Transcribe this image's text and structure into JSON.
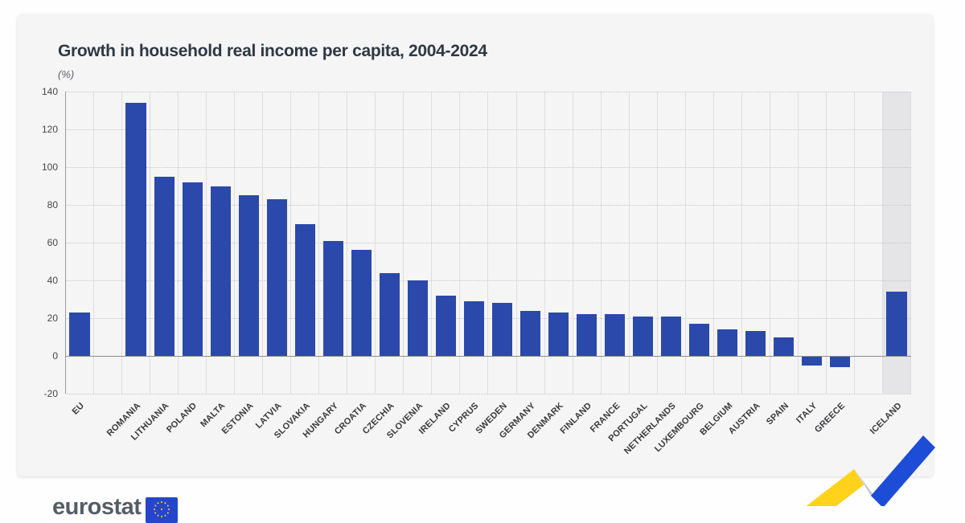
{
  "chart_data": {
    "type": "bar",
    "title": "Growth in household real income per capita, 2004-2024",
    "unit_label": "(%)",
    "xlabel": "",
    "ylabel": "(%)",
    "ylim": [
      -20,
      140
    ],
    "ytick_interval": 20,
    "yticks": [
      140,
      120,
      100,
      80,
      60,
      40,
      20,
      0,
      -20
    ],
    "grid": "horizontal dotted lines, vertical solid category separators",
    "legend": "none",
    "highlight_note": "ICELAND column has shaded gray background and is separated from EU members by an empty slot; EU aggregate bar is first, also separated by an empty slot",
    "bars": [
      {
        "label": "EU",
        "value": 23
      },
      {
        "label": "",
        "value": null,
        "spacer": true
      },
      {
        "label": "ROMANIA",
        "value": 134
      },
      {
        "label": "LITHUANIA",
        "value": 95
      },
      {
        "label": "POLAND",
        "value": 92
      },
      {
        "label": "MALTA",
        "value": 90
      },
      {
        "label": "ESTONIA",
        "value": 85
      },
      {
        "label": "LATVIA",
        "value": 83
      },
      {
        "label": "SLOVAKIA",
        "value": 70
      },
      {
        "label": "HUNGARY",
        "value": 61
      },
      {
        "label": "CROATIA",
        "value": 56
      },
      {
        "label": "CZECHIA",
        "value": 44
      },
      {
        "label": "SLOVENIA",
        "value": 40
      },
      {
        "label": "IRELAND",
        "value": 32
      },
      {
        "label": "CYPRUS",
        "value": 29
      },
      {
        "label": "SWEDEN",
        "value": 28
      },
      {
        "label": "GERMANY",
        "value": 24
      },
      {
        "label": "DENMARK",
        "value": 23
      },
      {
        "label": "FINLAND",
        "value": 22
      },
      {
        "label": "FRANCE",
        "value": 22
      },
      {
        "label": "PORTUGAL",
        "value": 21
      },
      {
        "label": "NETHERLANDS",
        "value": 21
      },
      {
        "label": "LUXEMBOURG",
        "value": 17
      },
      {
        "label": "BELGIUM",
        "value": 14
      },
      {
        "label": "AUSTRIA",
        "value": 13
      },
      {
        "label": "SPAIN",
        "value": 10
      },
      {
        "label": "ITALY",
        "value": -5
      },
      {
        "label": "GREECE",
        "value": -6
      },
      {
        "label": "",
        "value": null,
        "spacer": true
      },
      {
        "label": "ICELAND",
        "value": 34,
        "highlighted": true
      }
    ]
  },
  "branding": {
    "logo_text": "eurostat"
  },
  "colors": {
    "page_bg": "#fefefe",
    "card_bg": "#f5f5f6",
    "bar_blue": "#2b49aa",
    "highlight_col": "#e5e5e8",
    "grid_dotted": "#c6c6c9",
    "separator": "#dedee1",
    "axis_line": "#9b9b9f",
    "zero_line": "#8e8e92",
    "title_text": "#2e3844",
    "label_text": "#3a3a3c",
    "tick_text": "#46464a",
    "subtitle_text": "#595f66",
    "logo_text": "#555d66",
    "flag_blue": "#2546cb",
    "star_yellow": "#ffd617",
    "ribbon_yellow": "#ffd21c",
    "ribbon_blue": "#1d4cd7",
    "ribbon_fold_light": "#e3e4e7",
    "ribbon_fold_dark": "#b2b3ba"
  }
}
